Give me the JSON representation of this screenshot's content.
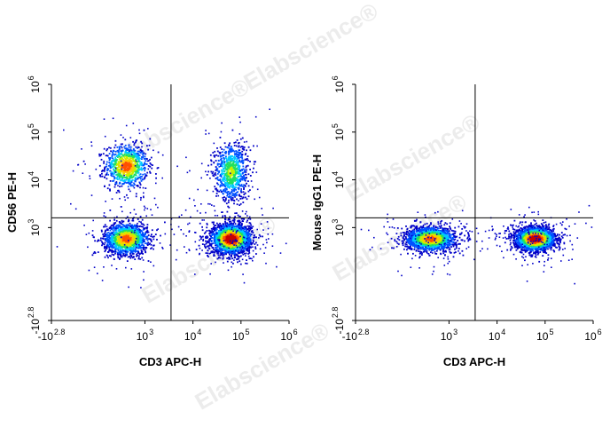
{
  "watermark": "Elabscience",
  "watermark_mark": "®",
  "colormap": [
    "#0000c8",
    "#0050ff",
    "#00c8ff",
    "#20e060",
    "#c8f000",
    "#ffc800",
    "#ff5000",
    "#c80000"
  ],
  "chart_data": [
    {
      "type": "scatter",
      "subtype": "flow-cytometry-density-dot-plot",
      "xlabel": "CD3 APC-H",
      "ylabel": "CD56 PE-H",
      "x_scale": "biexponential",
      "y_scale": "biexponential",
      "xlim": [
        -631,
        1000000
      ],
      "ylim": [
        -631,
        1000000
      ],
      "x_ticks": [
        {
          "base": "-10",
          "exp": "2.8"
        },
        {
          "base": "10",
          "exp": "3"
        },
        {
          "base": "10",
          "exp": "4"
        },
        {
          "base": "10",
          "exp": "5"
        },
        {
          "base": "10",
          "exp": "6"
        }
      ],
      "y_ticks": [
        {
          "base": "-10",
          "exp": "2.8"
        },
        {
          "base": "10",
          "exp": "3"
        },
        {
          "base": "10",
          "exp": "4"
        },
        {
          "base": "10",
          "exp": "5"
        },
        {
          "base": "10",
          "exp": "6"
        }
      ],
      "gate_x": 3500,
      "gate_y": 1600,
      "populations": [
        {
          "center": [
            400,
            20000
          ],
          "spread": [
            0.22,
            0.22
          ],
          "density": "high",
          "count": 900
        },
        {
          "center": [
            400,
            600
          ],
          "spread": [
            0.22,
            0.16
          ],
          "density": "high",
          "count": 1500
        },
        {
          "center": [
            60000,
            600
          ],
          "spread": [
            0.2,
            0.15
          ],
          "density": "very high",
          "count": 2300
        },
        {
          "center": [
            60000,
            15000
          ],
          "spread": [
            0.17,
            0.3
          ],
          "density": "medium",
          "count": 800
        }
      ]
    },
    {
      "type": "scatter",
      "subtype": "flow-cytometry-density-dot-plot",
      "xlabel": "CD3 APC-H",
      "ylabel": "Mouse IgG1 PE-H",
      "x_scale": "biexponential",
      "y_scale": "biexponential",
      "xlim": [
        -631,
        1000000
      ],
      "ylim": [
        -631,
        1000000
      ],
      "x_ticks": [
        {
          "base": "-10",
          "exp": "2.8"
        },
        {
          "base": "10",
          "exp": "3"
        },
        {
          "base": "10",
          "exp": "4"
        },
        {
          "base": "10",
          "exp": "5"
        },
        {
          "base": "10",
          "exp": "6"
        }
      ],
      "y_ticks": [
        {
          "base": "-10",
          "exp": "2.8"
        },
        {
          "base": "10",
          "exp": "3"
        },
        {
          "base": "10",
          "exp": "4"
        },
        {
          "base": "10",
          "exp": "5"
        },
        {
          "base": "10",
          "exp": "6"
        }
      ],
      "gate_x": 3500,
      "gate_y": 1600,
      "populations": [
        {
          "center": [
            400,
            600
          ],
          "spread": [
            0.25,
            0.12
          ],
          "density": "high",
          "count": 1800
        },
        {
          "center": [
            60000,
            600
          ],
          "spread": [
            0.2,
            0.12
          ],
          "density": "very high",
          "count": 2200
        }
      ]
    }
  ]
}
